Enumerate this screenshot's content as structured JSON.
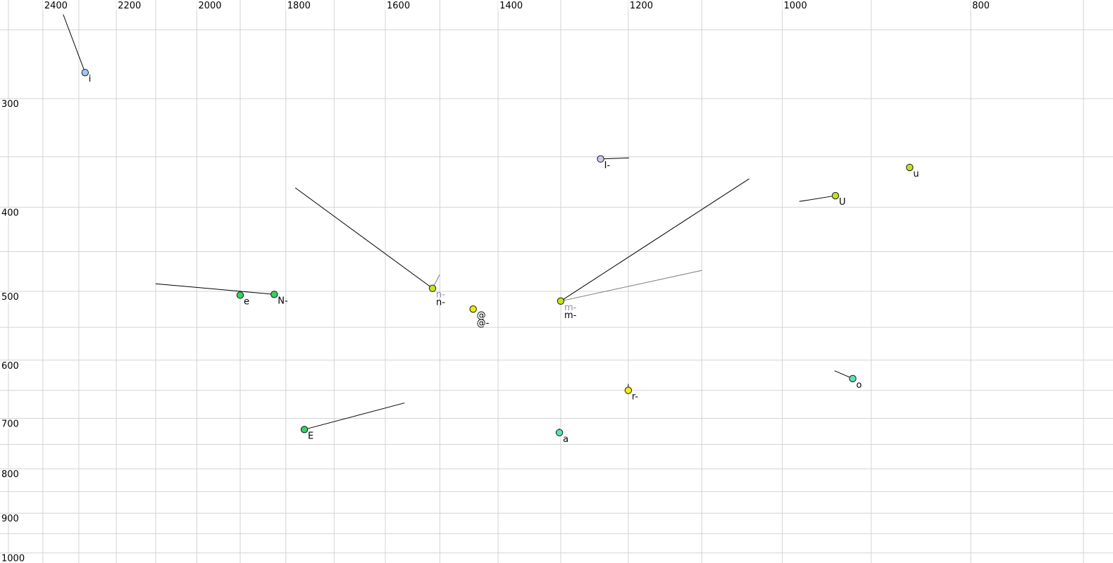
{
  "chart_data": {
    "type": "scatter",
    "title": "",
    "description": "Vowel formant plot: F2 (Hz, log scale, reversed) across top axis vs F1 (Hz, log scale) down left axis, with phoneme tokens and formant trajectory lines",
    "grid_color": "#d4d4d4",
    "background_color": "#ffffff",
    "tick_label_color": "#000000",
    "x_axis": {
      "unit": "Hz",
      "scale": "log",
      "direction": "reversed",
      "domain": [
        2525,
        676
      ],
      "tick_values": [
        2400,
        2200,
        2000,
        1800,
        1600,
        1400,
        1200,
        1000,
        800
      ],
      "tick_labels": [
        "2400",
        "2200",
        "2000",
        "1800",
        "1600",
        "1400",
        "1200",
        "1000",
        "800"
      ],
      "gridline_values": [
        2500,
        2400,
        2300,
        2200,
        2100,
        2000,
        1900,
        1800,
        1700,
        1600,
        1500,
        1400,
        1300,
        1200,
        1100,
        1000,
        900,
        800,
        700
      ]
    },
    "y_axis": {
      "unit": "Hz",
      "scale": "log",
      "direction": "down",
      "domain": [
        231,
        1027
      ],
      "tick_values": [
        300,
        400,
        500,
        600,
        700,
        800,
        900,
        1000
      ],
      "tick_labels": [
        "300",
        "400",
        "500",
        "600",
        "700",
        "800",
        "900",
        "1000"
      ],
      "gridline_values": [
        250,
        300,
        350,
        400,
        450,
        500,
        550,
        600,
        650,
        700,
        750,
        800,
        850,
        900,
        950,
        1000
      ]
    },
    "marker": {
      "radius": 4.7,
      "stroke_color": "#1a1a1a",
      "gray_label_color": "#8c8cae",
      "gray_trail_color": "#7a7a7a",
      "black_trail_color": "#000000"
    },
    "points": [
      {
        "label": "i",
        "f2": 2283,
        "f1": 280,
        "fill": "#a3c6f1",
        "labels": [
          {
            "text": "i",
            "color": "#000000"
          }
        ],
        "trails": [
          {
            "f2": 2343,
            "f1": 240,
            "color": "#000000"
          }
        ]
      },
      {
        "label": "I-",
        "f2": 1240,
        "f1": 352,
        "fill": "#cacaee",
        "labels": [
          {
            "text": "I-",
            "color": "#000000"
          }
        ],
        "trails": [
          {
            "f2": 1199,
            "f1": 351,
            "color": "#000000"
          }
        ]
      },
      {
        "label": "u",
        "f2": 860,
        "f1": 360,
        "fill": "#c0e41c",
        "labels": [
          {
            "text": "u",
            "color": "#000000"
          }
        ],
        "trails": []
      },
      {
        "label": "U",
        "f2": 939,
        "f1": 388,
        "fill": "#c0e41c",
        "labels": [
          {
            "text": "U",
            "color": "#000000"
          }
        ],
        "trails": [
          {
            "f2": 980,
            "f1": 394,
            "color": "#000000"
          }
        ]
      },
      {
        "label": "e",
        "f2": 1900,
        "f1": 505,
        "fill": "#35d262",
        "labels": [
          {
            "text": "e",
            "color": "#000000"
          }
        ],
        "trails": []
      },
      {
        "label": "N-",
        "f2": 1825,
        "f1": 504,
        "fill": "#35d262",
        "labels": [
          {
            "text": "N-",
            "color": "#000000"
          }
        ],
        "trails": [
          {
            "f2": 2100,
            "f1": 490,
            "color": "#000000"
          }
        ]
      },
      {
        "label": "n-",
        "f2": 1513,
        "f1": 496,
        "fill": "#c0e41c",
        "labels": [
          {
            "text": "n-",
            "color": "#8c8cae"
          },
          {
            "text": "n-",
            "color": "#000000"
          }
        ],
        "trails": [
          {
            "f2": 1780,
            "f1": 380,
            "color": "#000000"
          },
          {
            "f2": 1500,
            "f1": 478,
            "color": "#7a7a7a"
          }
        ]
      },
      {
        "label": "@",
        "f2": 1442,
        "f1": 524,
        "fill": "#eeeb00",
        "labels": [
          {
            "text": "@",
            "color": "#000000"
          },
          {
            "text": "@-",
            "color": "#000000"
          }
        ],
        "trails": []
      },
      {
        "label": "m-",
        "f2": 1300,
        "f1": 513,
        "fill": "#c0e41c",
        "labels": [
          {
            "text": "m-",
            "color": "#8c8cae"
          },
          {
            "text": "m-",
            "color": "#000000"
          }
        ],
        "trails": [
          {
            "f2": 1040,
            "f1": 371,
            "color": "#000000"
          },
          {
            "f2": 1100,
            "f1": 473,
            "color": "#7a7a7a"
          }
        ]
      },
      {
        "label": "r-",
        "f2": 1200,
        "f1": 650,
        "fill": "#f4ec00",
        "labels": [
          {
            "text": "r-",
            "color": "#000000"
          }
        ],
        "trails": [
          {
            "f2": 1200,
            "f1": 639,
            "color": "#000000"
          }
        ]
      },
      {
        "label": "o",
        "f2": 920,
        "f1": 630,
        "fill": "#58e2ad",
        "labels": [
          {
            "text": "o",
            "color": "#000000"
          }
        ],
        "trails": [
          {
            "f2": 940,
            "f1": 617,
            "color": "#000000"
          }
        ]
      },
      {
        "label": "E",
        "f2": 1761,
        "f1": 721,
        "fill": "#35d262",
        "labels": [
          {
            "text": "E",
            "color": "#000000"
          }
        ],
        "trails": [
          {
            "f2": 1564,
            "f1": 672,
            "color": "#000000"
          }
        ]
      },
      {
        "label": "a",
        "f2": 1302,
        "f1": 727,
        "fill": "#58e2ad",
        "labels": [
          {
            "text": "a",
            "color": "#000000"
          }
        ],
        "trails": [
          {
            "f2": 1302,
            "f1": 719,
            "color": "#000000"
          }
        ]
      }
    ]
  }
}
